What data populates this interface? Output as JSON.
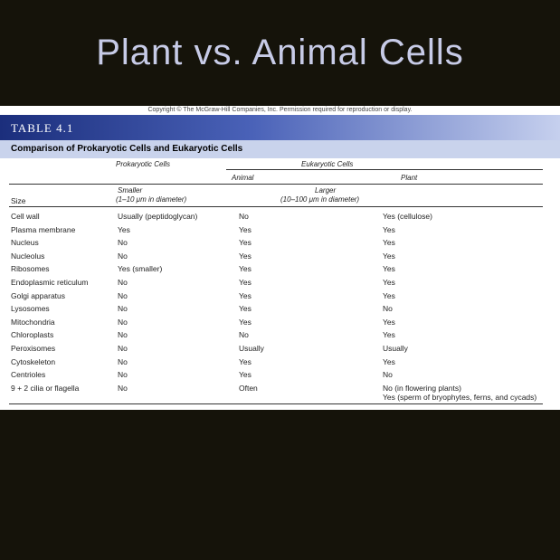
{
  "slide": {
    "title": "Plant vs. Animal Cells"
  },
  "figure": {
    "copyright": "Copyright © The McGraw-Hill Companies, Inc. Permission required for reproduction or display.",
    "table_label": "TABLE 4.1",
    "caption": "Comparison of Prokaryotic Cells and Eukaryotic Cells",
    "headers": {
      "prokaryotic": "Prokaryotic Cells",
      "eukaryotic": "Eukaryotic Cells",
      "animal": "Animal",
      "plant": "Plant"
    },
    "size_row": {
      "label": "Size",
      "prok_line1": "Smaller",
      "prok_line2": "(1–10 μm in diameter)",
      "euk_line1": "Larger",
      "euk_line2": "(10–100 μm in diameter)"
    },
    "rows": [
      {
        "feature": "Cell wall",
        "prokaryotic": "Usually (peptidoglycan)",
        "animal": "No",
        "plant": "Yes (cellulose)"
      },
      {
        "feature": "Plasma membrane",
        "prokaryotic": "Yes",
        "animal": "Yes",
        "plant": "Yes"
      },
      {
        "feature": "Nucleus",
        "prokaryotic": "No",
        "animal": "Yes",
        "plant": "Yes"
      },
      {
        "feature": "Nucleolus",
        "prokaryotic": "No",
        "animal": "Yes",
        "plant": "Yes"
      },
      {
        "feature": "Ribosomes",
        "prokaryotic": "Yes (smaller)",
        "animal": "Yes",
        "plant": "Yes"
      },
      {
        "feature": "Endoplasmic reticulum",
        "prokaryotic": "No",
        "animal": "Yes",
        "plant": "Yes"
      },
      {
        "feature": "Golgi apparatus",
        "prokaryotic": "No",
        "animal": "Yes",
        "plant": "Yes"
      },
      {
        "feature": "Lysosomes",
        "prokaryotic": "No",
        "animal": "Yes",
        "plant": "No"
      },
      {
        "feature": "Mitochondria",
        "prokaryotic": "No",
        "animal": "Yes",
        "plant": "Yes"
      },
      {
        "feature": "Chloroplasts",
        "prokaryotic": "No",
        "animal": "No",
        "plant": "Yes"
      },
      {
        "feature": "Peroxisomes",
        "prokaryotic": "No",
        "animal": "Usually",
        "plant": "Usually"
      },
      {
        "feature": "Cytoskeleton",
        "prokaryotic": "No",
        "animal": "Yes",
        "plant": "Yes"
      },
      {
        "feature": "Centrioles",
        "prokaryotic": "No",
        "animal": "Yes",
        "plant": "No"
      },
      {
        "feature": "9 + 2 cilia or flagella",
        "prokaryotic": "No",
        "animal": "Often",
        "plant": "No (in flowering plants)",
        "plant_line2": "Yes (sperm of bryophytes, ferns, and cycads)"
      }
    ]
  }
}
